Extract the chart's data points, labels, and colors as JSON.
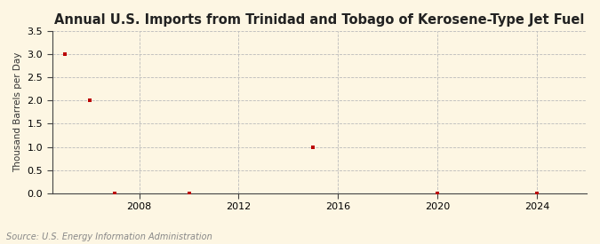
{
  "title": "Annual U.S. Imports from Trinidad and Tobago of Kerosene-Type Jet Fuel",
  "ylabel": "Thousand Barrels per Day",
  "source": "Source: U.S. Energy Information Administration",
  "background_color": "#fdf6e3",
  "plot_background_color": "#fdf6e3",
  "data_x": [
    2005,
    2006,
    2007,
    2010,
    2015,
    2020,
    2024
  ],
  "data_y": [
    3.0,
    2.0,
    0.0,
    0.0,
    1.0,
    0.0,
    0.0
  ],
  "marker_color": "#bb0000",
  "marker_size": 3.5,
  "xlim": [
    2004.5,
    2026
  ],
  "ylim": [
    0,
    3.5
  ],
  "yticks": [
    0.0,
    0.5,
    1.0,
    1.5,
    2.0,
    2.5,
    3.0,
    3.5
  ],
  "xticks": [
    2008,
    2012,
    2016,
    2020,
    2024
  ],
  "title_fontsize": 10.5,
  "label_fontsize": 7.5,
  "tick_fontsize": 8,
  "source_fontsize": 7
}
